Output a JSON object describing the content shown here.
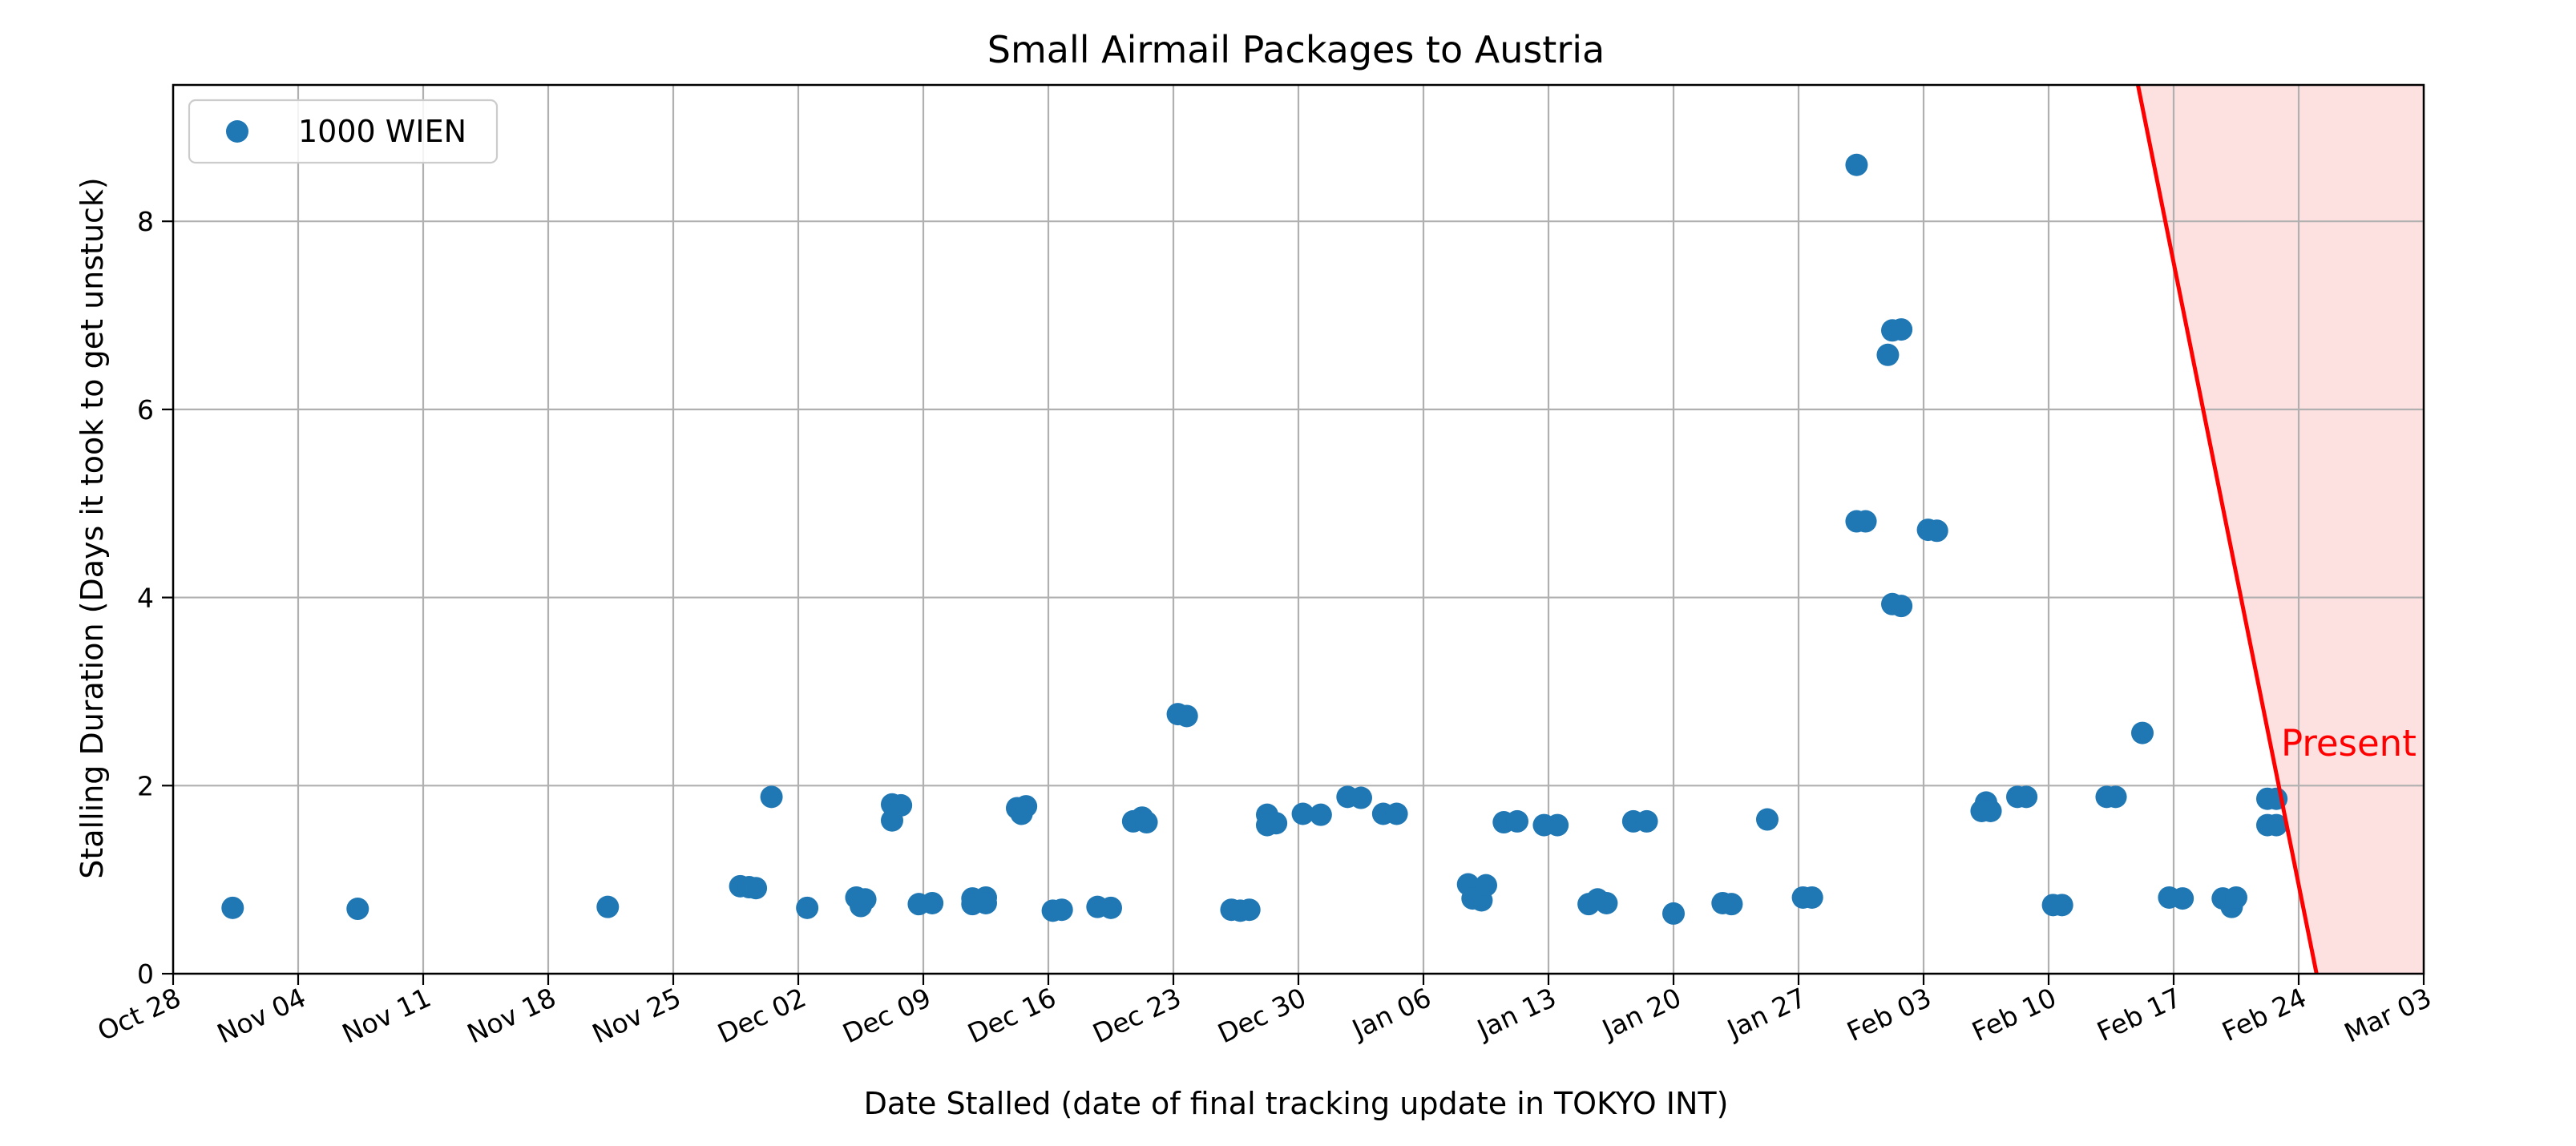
{
  "chart_data": {
    "type": "scatter",
    "title": "Small Airmail Packages to Austria",
    "xlabel": "Date Stalled (date of final tracking update in TOKYO INT)",
    "ylabel": "Stalling Duration (Days it took to get unstuck)",
    "x_axis": {
      "type": "date",
      "range": [
        "2024-10-28",
        "2025-03-03"
      ],
      "ticks": [
        {
          "date": "2024-10-28",
          "label": "Oct 28"
        },
        {
          "date": "2024-11-04",
          "label": "Nov 04"
        },
        {
          "date": "2024-11-11",
          "label": "Nov 11"
        },
        {
          "date": "2024-11-18",
          "label": "Nov 18"
        },
        {
          "date": "2024-11-25",
          "label": "Nov 25"
        },
        {
          "date": "2024-12-02",
          "label": "Dec 02"
        },
        {
          "date": "2024-12-09",
          "label": "Dec 09"
        },
        {
          "date": "2024-12-16",
          "label": "Dec 16"
        },
        {
          "date": "2024-12-23",
          "label": "Dec 23"
        },
        {
          "date": "2024-12-30",
          "label": "Dec 30"
        },
        {
          "date": "2025-01-06",
          "label": "Jan 06"
        },
        {
          "date": "2025-01-13",
          "label": "Jan 13"
        },
        {
          "date": "2025-01-20",
          "label": "Jan 20"
        },
        {
          "date": "2025-01-27",
          "label": "Jan 27"
        },
        {
          "date": "2025-02-03",
          "label": "Feb 03"
        },
        {
          "date": "2025-02-10",
          "label": "Feb 10"
        },
        {
          "date": "2025-02-17",
          "label": "Feb 17"
        },
        {
          "date": "2025-02-24",
          "label": "Feb 24"
        },
        {
          "date": "2025-03-03",
          "label": "Mar 03"
        }
      ]
    },
    "y_axis": {
      "range": [
        0,
        9.45
      ],
      "ticks": [
        0,
        2,
        4,
        6,
        8
      ]
    },
    "grid": true,
    "legend": {
      "placement": "top-left",
      "entries": [
        "1000 WIEN"
      ]
    },
    "series": [
      {
        "name": "1000 WIEN",
        "color": "#1f77b4",
        "points": [
          {
            "x": "2024-10-31 08:00",
            "y": 0.7
          },
          {
            "x": "2024-11-07 08:00",
            "y": 0.69
          },
          {
            "x": "2024-11-21 08:00",
            "y": 0.71
          },
          {
            "x": "2024-11-28 18:00",
            "y": 0.93
          },
          {
            "x": "2024-11-29 06:00",
            "y": 0.92
          },
          {
            "x": "2024-11-29 15:00",
            "y": 0.91
          },
          {
            "x": "2024-11-30 12:00",
            "y": 1.88
          },
          {
            "x": "2024-12-02 12:00",
            "y": 0.7
          },
          {
            "x": "2024-12-05 06:00",
            "y": 0.81
          },
          {
            "x": "2024-12-05 12:00",
            "y": 0.72
          },
          {
            "x": "2024-12-05 18:00",
            "y": 0.79
          },
          {
            "x": "2024-12-07 06:00",
            "y": 1.8
          },
          {
            "x": "2024-12-07 06:00",
            "y": 1.63
          },
          {
            "x": "2024-12-07 18:00",
            "y": 1.79
          },
          {
            "x": "2024-12-08 18:00",
            "y": 0.74
          },
          {
            "x": "2024-12-09 12:00",
            "y": 0.75
          },
          {
            "x": "2024-12-11 18:00",
            "y": 0.8
          },
          {
            "x": "2024-12-11 18:00",
            "y": 0.74
          },
          {
            "x": "2024-12-12 12:00",
            "y": 0.81
          },
          {
            "x": "2024-12-12 12:00",
            "y": 0.75
          },
          {
            "x": "2024-12-14 06:00",
            "y": 1.76
          },
          {
            "x": "2024-12-14 12:00",
            "y": 1.7
          },
          {
            "x": "2024-12-14 18:00",
            "y": 1.78
          },
          {
            "x": "2024-12-16 06:00",
            "y": 0.67
          },
          {
            "x": "2024-12-16 18:00",
            "y": 0.68
          },
          {
            "x": "2024-12-18 18:00",
            "y": 0.71
          },
          {
            "x": "2024-12-19 12:00",
            "y": 0.7
          },
          {
            "x": "2024-12-20 18:00",
            "y": 1.62
          },
          {
            "x": "2024-12-21 06:00",
            "y": 1.66
          },
          {
            "x": "2024-12-21 12:00",
            "y": 1.61
          },
          {
            "x": "2024-12-23 06:00",
            "y": 2.76
          },
          {
            "x": "2024-12-23 18:00",
            "y": 2.74
          },
          {
            "x": "2024-12-26 06:00",
            "y": 0.68
          },
          {
            "x": "2024-12-26 18:00",
            "y": 0.67
          },
          {
            "x": "2024-12-27 06:00",
            "y": 0.68
          },
          {
            "x": "2024-12-28 06:00",
            "y": 1.69
          },
          {
            "x": "2024-12-28 06:00",
            "y": 1.58
          },
          {
            "x": "2024-12-28 18:00",
            "y": 1.6
          },
          {
            "x": "2024-12-30 06:00",
            "y": 1.7
          },
          {
            "x": "2024-12-31 06:00",
            "y": 1.69
          },
          {
            "x": "2025-01-01 18:00",
            "y": 1.88
          },
          {
            "x": "2025-01-02 12:00",
            "y": 1.87
          },
          {
            "x": "2025-01-03 18:00",
            "y": 1.7
          },
          {
            "x": "2025-01-04 12:00",
            "y": 1.7
          },
          {
            "x": "2025-01-08 12:00",
            "y": 0.95
          },
          {
            "x": "2025-01-08 18:00",
            "y": 0.8
          },
          {
            "x": "2025-01-09 06:00",
            "y": 0.78
          },
          {
            "x": "2025-01-09 12:00",
            "y": 0.94
          },
          {
            "x": "2025-01-10 12:00",
            "y": 1.61
          },
          {
            "x": "2025-01-11 06:00",
            "y": 1.62
          },
          {
            "x": "2025-01-12 18:00",
            "y": 1.58
          },
          {
            "x": "2025-01-13 12:00",
            "y": 1.58
          },
          {
            "x": "2025-01-15 06:00",
            "y": 0.74
          },
          {
            "x": "2025-01-15 18:00",
            "y": 0.79
          },
          {
            "x": "2025-01-16 06:00",
            "y": 0.75
          },
          {
            "x": "2025-01-17 18:00",
            "y": 1.62
          },
          {
            "x": "2025-01-18 12:00",
            "y": 1.62
          },
          {
            "x": "2025-01-20 00:00",
            "y": 0.64
          },
          {
            "x": "2025-01-22 18:00",
            "y": 0.75
          },
          {
            "x": "2025-01-23 06:00",
            "y": 0.74
          },
          {
            "x": "2025-01-25 06:00",
            "y": 1.64
          },
          {
            "x": "2025-01-27 06:00",
            "y": 0.81
          },
          {
            "x": "2025-01-27 18:00",
            "y": 0.81
          },
          {
            "x": "2025-01-30 06:00",
            "y": 8.6
          },
          {
            "x": "2025-01-30 06:00",
            "y": 4.81
          },
          {
            "x": "2025-01-30 18:00",
            "y": 4.81
          },
          {
            "x": "2025-02-01 00:00",
            "y": 6.58
          },
          {
            "x": "2025-02-01 06:00",
            "y": 6.84
          },
          {
            "x": "2025-02-01 06:00",
            "y": 3.93
          },
          {
            "x": "2025-02-01 18:00",
            "y": 6.85
          },
          {
            "x": "2025-02-01 18:00",
            "y": 3.91
          },
          {
            "x": "2025-02-03 06:00",
            "y": 4.72
          },
          {
            "x": "2025-02-03 18:00",
            "y": 4.71
          },
          {
            "x": "2025-02-06 06:00",
            "y": 1.73
          },
          {
            "x": "2025-02-06 12:00",
            "y": 1.82
          },
          {
            "x": "2025-02-06 18:00",
            "y": 1.73
          },
          {
            "x": "2025-02-08 06:00",
            "y": 1.88
          },
          {
            "x": "2025-02-08 18:00",
            "y": 1.88
          },
          {
            "x": "2025-02-10 06:00",
            "y": 0.73
          },
          {
            "x": "2025-02-10 18:00",
            "y": 0.73
          },
          {
            "x": "2025-02-13 06:00",
            "y": 1.88
          },
          {
            "x": "2025-02-13 18:00",
            "y": 1.88
          },
          {
            "x": "2025-02-15 06:00",
            "y": 2.56
          },
          {
            "x": "2025-02-16 18:00",
            "y": 0.81
          },
          {
            "x": "2025-02-17 12:00",
            "y": 0.8
          },
          {
            "x": "2025-02-19 18:00",
            "y": 0.8
          },
          {
            "x": "2025-02-20 06:00",
            "y": 0.71
          },
          {
            "x": "2025-02-20 12:00",
            "y": 0.81
          },
          {
            "x": "2025-02-22 06:00",
            "y": 1.86
          },
          {
            "x": "2025-02-22 06:00",
            "y": 1.58
          },
          {
            "x": "2025-02-22 18:00",
            "y": 1.86
          },
          {
            "x": "2025-02-22 18:00",
            "y": 1.58
          }
        ]
      }
    ],
    "annotations": [
      {
        "text": "Present",
        "color": "#ff0000",
        "line": {
          "from": {
            "x": "2025-02-15 00:00",
            "y": 9.45
          },
          "to": {
            "x": "2025-02-25 00:00",
            "y": 0
          }
        },
        "shaded_region": {
          "from": "2025-02-15 00:00",
          "to": "2025-03-03",
          "color": "#fde0e0"
        }
      }
    ]
  }
}
